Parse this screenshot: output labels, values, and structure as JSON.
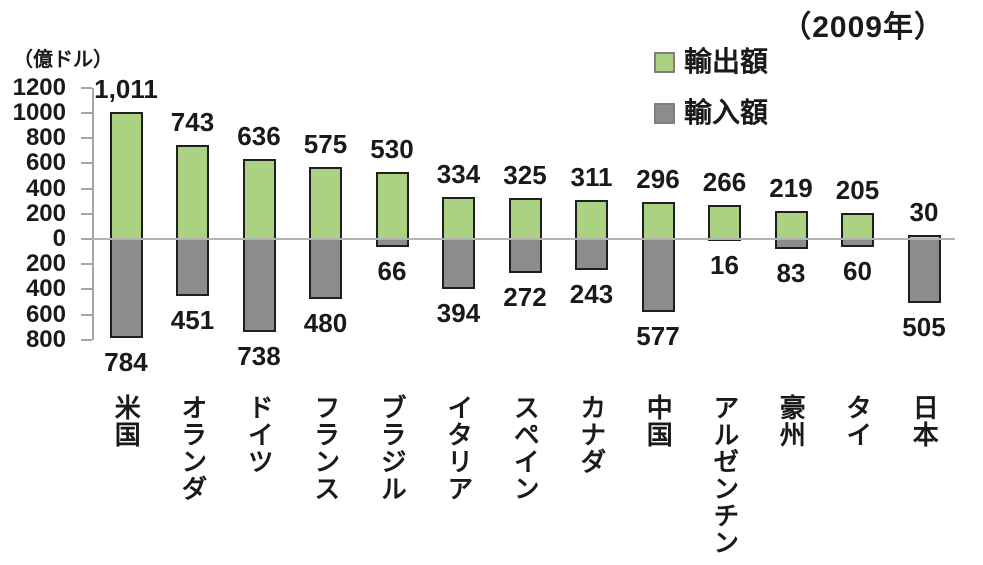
{
  "title": "（2009年）",
  "axis_unit_label": "（億ドル）",
  "legend": [
    {
      "label": "輸出額",
      "color": "#aad282"
    },
    {
      "label": "輸入額",
      "color": "#8c8c8c"
    }
  ],
  "colors": {
    "export_bar": "#aad282",
    "import_bar": "#8c8c8c",
    "bar_border": "#1f1f1f",
    "axis": "#a6a6a6",
    "zero_line": "#b3b3b3",
    "text": "#1a1a1a",
    "background": "#ffffff"
  },
  "chart_data": {
    "type": "bar",
    "title": "（2009年）",
    "ylabel": "（億ドル）",
    "categories": [
      "米国",
      "オランダ",
      "ドイツ",
      "フランス",
      "ブラジル",
      "イタリア",
      "スペイン",
      "カナダ",
      "中国",
      "アルゼンチン",
      "豪州",
      "タイ",
      "日本"
    ],
    "series": [
      {
        "name": "輸出額",
        "color": "#aad282",
        "values": [
          1011,
          743,
          636,
          575,
          530,
          334,
          325,
          311,
          296,
          266,
          219,
          205,
          30
        ]
      },
      {
        "name": "輸入額",
        "color": "#8c8c8c",
        "values": [
          784,
          451,
          738,
          480,
          66,
          394,
          272,
          243,
          577,
          16,
          83,
          60,
          505
        ],
        "direction": "down"
      }
    ],
    "value_labels": {
      "exports": [
        "1,011",
        "743",
        "636",
        "575",
        "530",
        "334",
        "325",
        "311",
        "296",
        "266",
        "219",
        "205",
        "30"
      ],
      "imports": [
        "784",
        "451",
        "738",
        "480",
        "66",
        "394",
        "272",
        "243",
        "577",
        "16",
        "83",
        "60",
        "505"
      ]
    },
    "y_ticks": [
      1200,
      1000,
      800,
      600,
      400,
      200,
      0,
      -200,
      -400,
      -600,
      -800
    ],
    "y_tick_labels": [
      "1200",
      "1000",
      "800",
      "600",
      "400",
      "200",
      "0",
      "200",
      "400",
      "600",
      "800"
    ],
    "ylim": [
      -800,
      1200
    ],
    "grid": "zero-line-only",
    "legend_position": "top-right",
    "bar_orientation": "vertical-diverging"
  }
}
